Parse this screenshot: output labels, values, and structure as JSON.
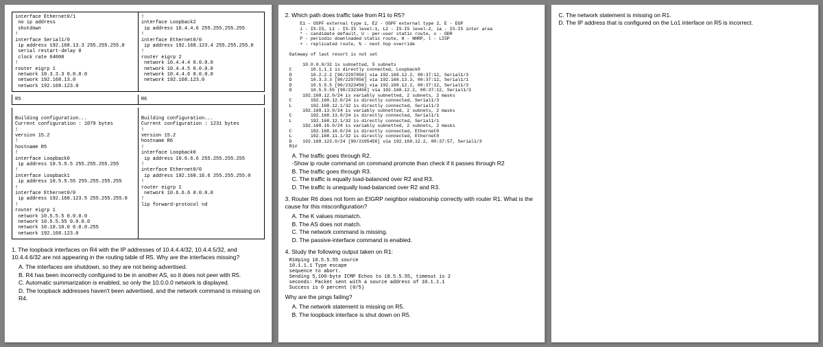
{
  "page1": {
    "cfg_tl": "interface Ethernet0/1\n no ip address\n shutdown\n!\ninterface Serial1/0\n ip address 192.168.13.3 255.255.255.0\n serial restart-delay 0\n clock rate 64000\n!\nrouter eigrp 1\n network 10.3.3.3 0.0.0.0\n network 192.168.13.0\n network 192.168.123.0",
    "cfg_tr": "!\ninterface Loopback2\n ip address 10.4.4.6 255.255.255.255\n!\ninterface Ethernet0/0\n ip address 192.168.123.4 255.255.255.0\n!\nrouter eigrp 2\n network 10.4.4.4 0.0.0.0\n network 10.4.4.5 0.0.0.0\n network 10.4.4.6 0.0.0.0\n network 192.168.123.0",
    "hdr_r5": "R5",
    "hdr_r6": "R6",
    "cfg_r5": "\nBuilding configuration...\nCurrent configuration : 1079 bytes\n!\nversion 15.2\n!\nhostname R5\n!\ninterface Loopback0\n ip address 10.5.5.5 255.255.255.255\n!\ninterface Loopback1\n ip address 10.5.5.55 255.255.255.255\n!\ninterface Ethernet0/0\n ip address 192.168.123.5 255.255.255.0\n!\nrouter eigrp 1\n network 10.5.5.5 0.0.0.0\n network 10.5.5.55 0.0.0.0\n network 10.10.10.0 0.0.0.255\n network 192.168.123.0",
    "cfg_r6": "\nBuilding configuration...\nCurrent configuration : 1231 bytes\n!\nversion 15.2\nhostname R6\n!\ninterface Loopback0\n ip address 10.6.6.6 255.255.255.255\n!\ninterface Ethernet0/0\n ip address 192.168.16.6 255.255.255.0\n!\nrouter eigrp 1\n network 10.6.6.6 0.0.0.0\n!\nlip forward-protocol nd",
    "q1": "1. The loopback interfaces on R4 with the IP addresses of 10.4.4.4/32, 10.4.4.5/32, and 10.4.4.6/32 are not appearing in the routing table of R5. Why are the interfaces missing?",
    "q1a": "A. The interfaces are shutdown, so they are not being advertised.",
    "q1b": "B. R4 has been incorrectly configured to be in another AS, so it does not peer with R5.",
    "q1c": "C. Automatic summarization is enabled, so only the 10.0.0.0 network is displayed.",
    "q1d": "D. The loopback addresses haven't been advertised, and the network command is missing on R4."
  },
  "page2": {
    "q2": "2. Which path does traffic take from R1 to R5?",
    "codes": "    E1 - OSPF external type 1, E2 - OSPF external type 2, E - EGP\n    i - IS-IS, L1 - IS-IS level-1, L2 - IS-IS level-2, ia - IS-IS inter area\n    * - candidate default, U - per-user static route, o - ODR\n    P - periodic downloaded static route, H - NHRP, l - LISP\n    + - replicated route, % - next hop override\n\nGateway of last resort is not set\n\n     10.0.0.0/32 is subnetted, 5 subnets\nC       10.1.1.1 is directly connected, Loopback0\nD       10.2.2.2 [90/2297856] via 192.168.12.2, 00:37:12, Serial1/3\nD       10.3.3.3 [90/2297856] via 192.168.13.3, 00:37:12, Serial1/1\nD       10.5.5.5 [90/2323456] via 192.168.12.2, 00:37:12, Serial1/3\nD       10.5.5.55 [90/2323456] via 192.168.12.2, 00:37:12, Serial1/3\n     192.168.12.0/24 is variably subnetted, 2 subnets, 2 masks\nC       192.168.12.0/24 is directly connected, Serial1/3\nL       192.168.12.1/32 is directly connected, Serial1/3\n     192.168.13.0/24 is variably subnetted, 2 subnets, 2 masks\nC       192.168.13.0/24 is directly connected, Serial1/1\nL       192.168.12.1/32 is directly connected, Serial1/1\n     192.168.16.0/24 is variably subnetted, 2 subnets, 2 masks\nC       192.168.16.0/24 is directly connected, Ethernet0\nL       192.168.11.1/32 is directly connected, Ethernet0\nD    192.168.123.0/24 [90/2195456] via 192.168.12.2, 00:37:57, Serial1/3\nR1#",
    "q2a": "A. The traffic goes through R2.",
    "q2hint": "-Show ip route command on command promote than check if it passes through R2",
    "q2b": "B. The traffic goes through R3.",
    "q2c": "C. The traffic is equally load-balanced over R2 and R3.",
    "q2d": "D. The traffic is unequally load-balanced over R2 and R3.",
    "q3": "3. Router R6 does not form an EIGRP neighbor relationship correctly with router R1. What is the  cause for this misconfiguration?",
    "q3a": "A. The K values mismatch.",
    "q3b": "B. The AS does not match.",
    "q3c": "C. The network command is missing.",
    "q3d": "D. The passive-interface command is enabled.",
    "q4": "4. Study the following output taken on R1:",
    "q4code": "R1#ping 10.5.5.55 source\n10.1.1.1 Type escape\nsequence to abort.\nSending 5,100-byte ICMP Echos to 10.5.5.55, timeout is 2\nseconds: Packet sent with a source address of 10.1.1.1\nSuccess is 0 percent (0/5)",
    "q4q": "Why are the pings failing?",
    "q4a": "A. The network statement is missing on R5.",
    "q4b": "B. The loopback interface is shut down on R5."
  },
  "page3": {
    "c": "C.  The network statement is missing on R1.",
    "d": "D.  The IP address that is configured on the Lo1 interface on R5 is incorrect."
  }
}
